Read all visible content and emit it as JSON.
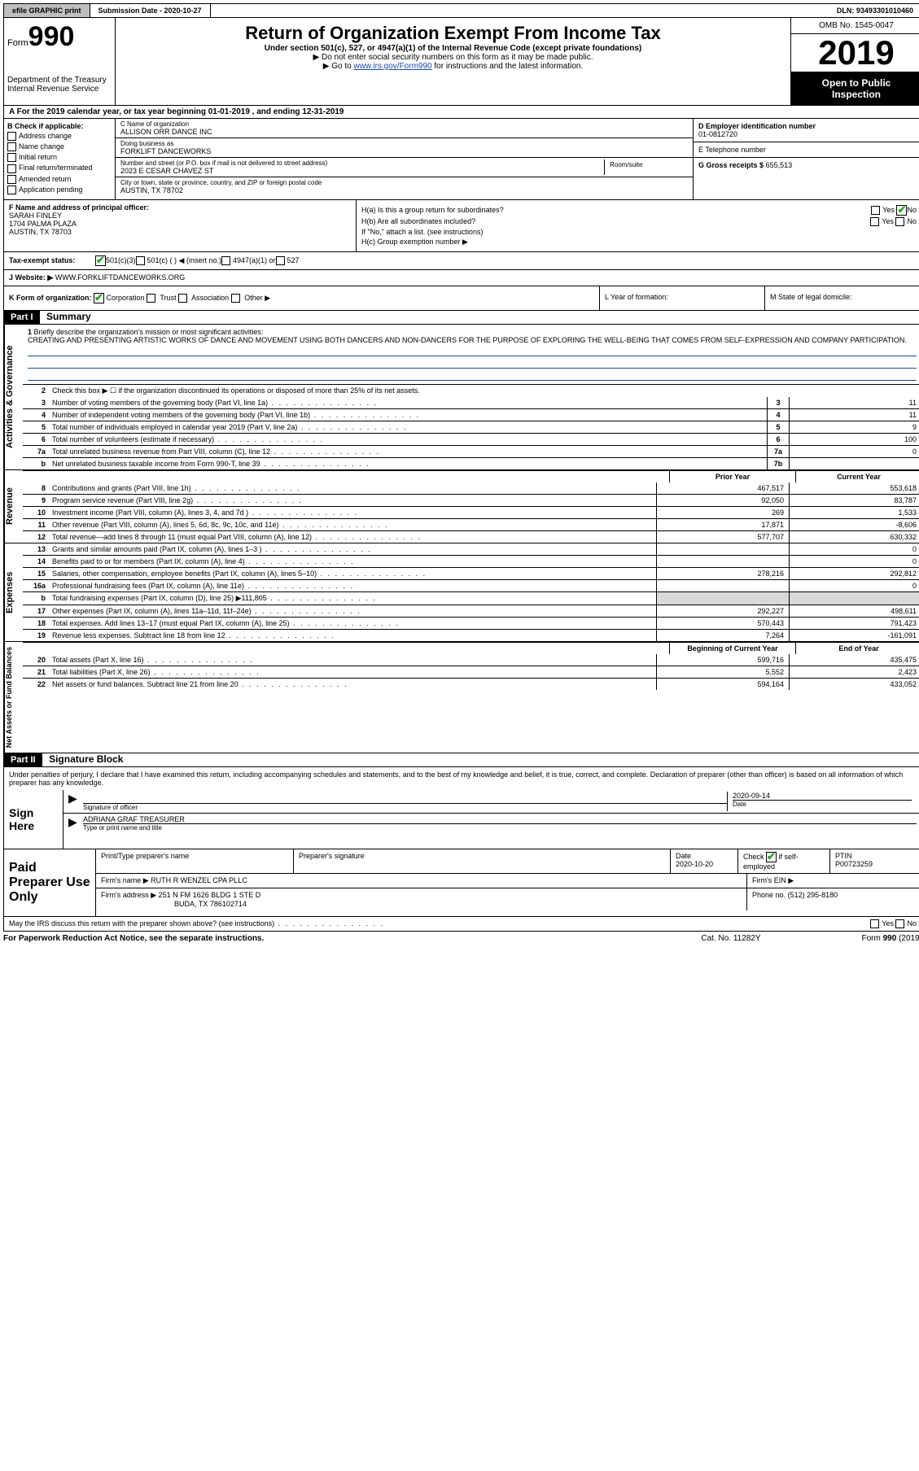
{
  "topbar": {
    "efile": "efile GRAPHIC print",
    "submission_label": "Submission Date - 2020-10-27",
    "dln": "DLN: 93493301010460"
  },
  "header": {
    "form_prefix": "Form",
    "form_number": "990",
    "dept": "Department of the Treasury",
    "irs": "Internal Revenue Service",
    "title": "Return of Organization Exempt From Income Tax",
    "subtitle": "Under section 501(c), 527, or 4947(a)(1) of the Internal Revenue Code (except private foundations)",
    "note1": "▶ Do not enter social security numbers on this form as it may be made public.",
    "note2_prefix": "▶ Go to ",
    "note2_link": "www.irs.gov/Form990",
    "note2_suffix": " for instructions and the latest information.",
    "omb": "OMB No. 1545-0047",
    "year": "2019",
    "open1": "Open to Public",
    "open2": "Inspection"
  },
  "tyline": "A For the 2019 calendar year, or tax year beginning 01-01-2019    , and ending 12-31-2019",
  "sectionB": {
    "label": "B Check if applicable:",
    "opts": [
      "Address change",
      "Name change",
      "Initial return",
      "Final return/terminated",
      "Amended return",
      "Application pending"
    ]
  },
  "sectionC": {
    "name_label": "C Name of organization",
    "name": "ALLISON ORR DANCE INC",
    "dba_label": "Doing business as",
    "dba": "FORKLIFT DANCEWORKS",
    "addr_label": "Number and street (or P.O. box if mail is not delivered to street address)",
    "room_label": "Room/suite",
    "addr": "2023 E CESAR CHAVEZ ST",
    "city_label": "City or town, state or province, country, and ZIP or foreign postal code",
    "city": "AUSTIN, TX  78702"
  },
  "sectionD": {
    "label": "D Employer identification number",
    "value": "01-0812720"
  },
  "sectionE": {
    "label": "E Telephone number",
    "value": ""
  },
  "sectionG": {
    "label": "G Gross receipts $",
    "value": "655,513"
  },
  "sectionF": {
    "label": "F  Name and address of principal officer:",
    "name": "SARAH FINLEY",
    "addr1": "1704 PALMA PLAZA",
    "addr2": "AUSTIN, TX  78703"
  },
  "sectionH": {
    "ha": "H(a)  Is this a group return for subordinates?",
    "hb": "H(b)  Are all subordinates included?",
    "hb_note": "If \"No,\" attach a list. (see instructions)",
    "hc": "H(c)  Group exemption number ▶",
    "yes": "Yes",
    "no": "No"
  },
  "taxex": {
    "label": "Tax-exempt status:",
    "opts": [
      "501(c)(3)",
      "501(c) (  ) ◀ (insert no.)",
      "4947(a)(1) or",
      "527"
    ]
  },
  "website": {
    "label": "J    Website: ▶",
    "value": "WWW.FORKLIFTDANCEWORKS.ORG"
  },
  "kline": {
    "label": "K Form of organization:",
    "opts": [
      "Corporation",
      "Trust",
      "Association",
      "Other ▶"
    ],
    "lyear": "L Year of formation:",
    "mstate": "M State of legal domicile:"
  },
  "part1": {
    "label": "Part I",
    "title": "Summary"
  },
  "mission": {
    "num": "1",
    "label": "Briefly describe the organization's mission or most significant activities:",
    "text": "CREATING AND PRESENTING ARTISTIC WORKS OF DANCE AND MOVEMENT USING BOTH DANCERS AND NON-DANCERS FOR THE PURPOSE OF EXPLORING THE WELL-BEING THAT COMES FROM SELF-EXPRESSION AND COMPANY PARTICIPATION."
  },
  "activities": {
    "label": "Activities & Governance",
    "line2": "Check this box ▶ ☐  if the organization discontinued its operations or disposed of more than 25% of its net assets.",
    "rows": [
      {
        "num": "3",
        "text": "Number of voting members of the governing body (Part VI, line 1a)",
        "box": "3",
        "val": "11"
      },
      {
        "num": "4",
        "text": "Number of independent voting members of the governing body (Part VI, line 1b)",
        "box": "4",
        "val": "11"
      },
      {
        "num": "5",
        "text": "Total number of individuals employed in calendar year 2019 (Part V, line 2a)",
        "box": "5",
        "val": "9"
      },
      {
        "num": "6",
        "text": "Total number of volunteers (estimate if necessary)",
        "box": "6",
        "val": "100"
      },
      {
        "num": "7a",
        "text": "Total unrelated business revenue from Part VIII, column (C), line 12",
        "box": "7a",
        "val": "0"
      },
      {
        "num": "b",
        "text": "Net unrelated business taxable income from Form 990-T, line 39",
        "box": "7b",
        "val": ""
      }
    ]
  },
  "yearhead": {
    "prior": "Prior Year",
    "current": "Current Year"
  },
  "revenue": {
    "label": "Revenue",
    "rows": [
      {
        "num": "8",
        "text": "Contributions and grants (Part VIII, line 1h)",
        "prior": "467,517",
        "cur": "553,618"
      },
      {
        "num": "9",
        "text": "Program service revenue (Part VIII, line 2g)",
        "prior": "92,050",
        "cur": "83,787"
      },
      {
        "num": "10",
        "text": "Investment income (Part VIII, column (A), lines 3, 4, and 7d )",
        "prior": "269",
        "cur": "1,533"
      },
      {
        "num": "11",
        "text": "Other revenue (Part VIII, column (A), lines 5, 6d, 8c, 9c, 10c, and 11e)",
        "prior": "17,871",
        "cur": "-8,606"
      },
      {
        "num": "12",
        "text": "Total revenue—add lines 8 through 11 (must equal Part VIII, column (A), line 12)",
        "prior": "577,707",
        "cur": "630,332"
      }
    ]
  },
  "expenses": {
    "label": "Expenses",
    "rows": [
      {
        "num": "13",
        "text": "Grants and similar amounts paid (Part IX, column (A), lines 1–3 )",
        "prior": "",
        "cur": "0"
      },
      {
        "num": "14",
        "text": "Benefits paid to or for members (Part IX, column (A), line 4)",
        "prior": "",
        "cur": "0"
      },
      {
        "num": "15",
        "text": "Salaries, other compensation, employee benefits (Part IX, column (A), lines 5–10)",
        "prior": "278,216",
        "cur": "292,812"
      },
      {
        "num": "16a",
        "text": "Professional fundraising fees (Part IX, column (A), line 11e)",
        "prior": "",
        "cur": "0"
      },
      {
        "num": "b",
        "text": "Total fundraising expenses (Part IX, column (D), line 25) ▶111,805",
        "prior": "SHADE",
        "cur": "SHADE"
      },
      {
        "num": "17",
        "text": "Other expenses (Part IX, column (A), lines 11a–11d, 11f–24e)",
        "prior": "292,227",
        "cur": "498,611"
      },
      {
        "num": "18",
        "text": "Total expenses. Add lines 13–17 (must equal Part IX, column (A), line 25)",
        "prior": "570,443",
        "cur": "791,423"
      },
      {
        "num": "19",
        "text": "Revenue less expenses. Subtract line 18 from line 12",
        "prior": "7,264",
        "cur": "-161,091"
      }
    ]
  },
  "netassets": {
    "label": "Net Assets or Fund Balances",
    "head": {
      "beg": "Beginning of Current Year",
      "end": "End of Year"
    },
    "rows": [
      {
        "num": "20",
        "text": "Total assets (Part X, line 16)",
        "prior": "599,716",
        "cur": "435,475"
      },
      {
        "num": "21",
        "text": "Total liabilities (Part X, line 26)",
        "prior": "5,552",
        "cur": "2,423"
      },
      {
        "num": "22",
        "text": "Net assets or fund balances. Subtract line 21 from line 20",
        "prior": "594,164",
        "cur": "433,052"
      }
    ]
  },
  "part2": {
    "label": "Part II",
    "title": "Signature Block"
  },
  "sig": {
    "intro": "Under penalties of perjury, I declare that I have examined this return, including accompanying schedules and statements, and to the best of my knowledge and belief, it is true, correct, and complete. Declaration of preparer (other than officer) is based on all information of which preparer has any knowledge.",
    "signhere": "Sign Here",
    "sigofficer": "Signature of officer",
    "date": "2020-09-14",
    "datelbl": "Date",
    "name": "ADRIANA GRAF  TREASURER",
    "typelbl": "Type or print name and title"
  },
  "prep": {
    "label": "Paid Preparer Use Only",
    "h1": "Print/Type preparer's name",
    "h2": "Preparer's signature",
    "h3": "Date",
    "datev": "2020-10-20",
    "h4a": "Check",
    "h4b": "if self-employed",
    "h5": "PTIN",
    "ptin": "P00723259",
    "firmname_lbl": "Firm's name    ▶",
    "firmname": "RUTH R WENZEL CPA PLLC",
    "firmein": "Firm's EIN ▶",
    "firmaddr_lbl": "Firm's address ▶",
    "firmaddr1": "251 N FM 1626 BLDG 1 STE D",
    "firmaddr2": "BUDA, TX  786102714",
    "phone_lbl": "Phone no.",
    "phone": "(512) 295-8180"
  },
  "may": {
    "text": "May the IRS discuss this return with the preparer shown above? (see instructions)",
    "yes": "Yes",
    "no": "No"
  },
  "footer": {
    "paperwork": "For Paperwork Reduction Act Notice, see the separate instructions.",
    "cat": "Cat. No. 11282Y",
    "form": "Form 990 (2019)"
  }
}
